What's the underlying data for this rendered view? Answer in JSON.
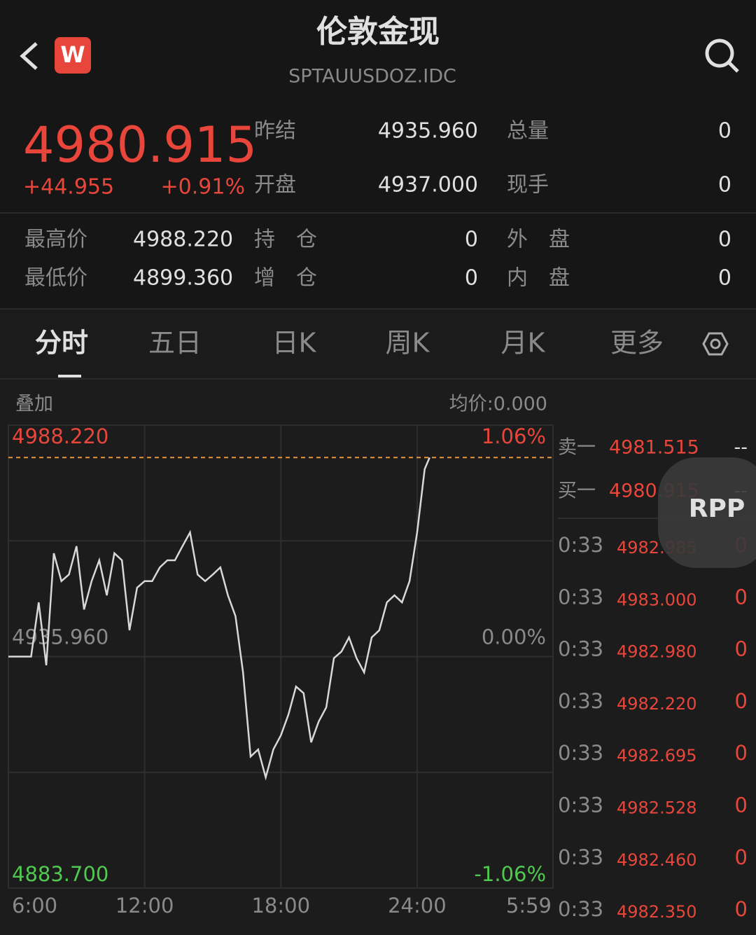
{
  "header": {
    "logo": "W",
    "title": "伦敦金现",
    "subtitle": "SPTAUUSDOZ.IDC"
  },
  "quote": {
    "price": "4980.915",
    "change": "+44.955",
    "change_pct": "+0.91%",
    "side": [
      {
        "label": "昨结",
        "value": "4935.960"
      },
      {
        "label": "总量",
        "value": "0"
      },
      {
        "label": "开盘",
        "value": "4937.000"
      },
      {
        "label": "现手",
        "value": "0"
      }
    ]
  },
  "stats": [
    {
      "label": "最高价",
      "value": "4988.220"
    },
    {
      "label": "持　仓",
      "value": "0"
    },
    {
      "label": "外　盘",
      "value": "0"
    },
    {
      "label": "最低价",
      "value": "4899.360"
    },
    {
      "label": "增　仓",
      "value": "0"
    },
    {
      "label": "内　盘",
      "value": "0"
    }
  ],
  "tabs": [
    "分时",
    "五日",
    "日K",
    "周K",
    "月K",
    "更多"
  ],
  "chart_data": {
    "type": "line",
    "overlay_label": "叠加",
    "avg_label": "均价:0.000",
    "color": "#d8d8d8",
    "x": [
      "6:00",
      "6:20",
      "6:40",
      "7:00",
      "7:20",
      "7:40",
      "8:00",
      "8:20",
      "8:40",
      "9:00",
      "9:20",
      "9:40",
      "10:00",
      "10:20",
      "10:40",
      "11:00",
      "11:20",
      "11:40",
      "12:00",
      "12:20",
      "12:40",
      "13:00",
      "13:20",
      "13:40",
      "14:00",
      "14:20",
      "14:40",
      "15:00",
      "15:20",
      "15:40",
      "16:00",
      "16:20",
      "16:40",
      "17:00",
      "17:20",
      "17:40",
      "18:00",
      "18:20",
      "18:40",
      "19:00",
      "19:20",
      "19:40",
      "20:00",
      "20:20",
      "20:40",
      "21:00",
      "21:20",
      "21:40",
      "22:00",
      "22:20",
      "22:40",
      "23:00",
      "23:20",
      "23:40",
      "0:00",
      "0:20",
      "0:33"
    ],
    "values": [
      4935.96,
      4935.96,
      4935.96,
      4935.96,
      4948.2,
      4934.0,
      4959.3,
      4953.0,
      4954.5,
      4960.9,
      4946.6,
      4953.0,
      4957.7,
      4949.8,
      4959.3,
      4957.7,
      4941.9,
      4951.5,
      4953.0,
      4953.0,
      4956.1,
      4957.7,
      4957.7,
      4960.9,
      4964.0,
      4954.5,
      4953.0,
      4954.5,
      4956.1,
      4949.8,
      4945.1,
      4932.4,
      4913.4,
      4915.0,
      4908.7,
      4915.0,
      4918.2,
      4922.9,
      4929.2,
      4927.7,
      4916.6,
      4921.3,
      4924.5,
      4935.6,
      4937.1,
      4940.3,
      4935.6,
      4932.4,
      4940.3,
      4941.9,
      4948.2,
      4949.8,
      4948.2,
      4953.0,
      4964.0,
      4978.3,
      4980.915
    ],
    "ylim": [
      4883.7,
      4988.22
    ],
    "yticks": [
      {
        "value": 4883.7,
        "label": "4883.700"
      },
      {
        "value": 4935.96,
        "label": "4935.960"
      },
      {
        "value": 4988.22,
        "label": "4988.220"
      }
    ],
    "pct_labels": [
      "-1.06%",
      "0.00%",
      "1.06%"
    ],
    "xticks": [
      "6:00",
      "12:00",
      "18:00",
      "24:00",
      "5:59"
    ]
  },
  "orderbook": [
    {
      "label": "卖一",
      "price": "4981.515",
      "vol": "--"
    },
    {
      "label": "买一",
      "price": "4980.915",
      "vol": "--"
    }
  ],
  "trades": [
    {
      "time": "0:33",
      "price": "4982.985",
      "vol": "0"
    },
    {
      "time": "0:33",
      "price": "4983.000",
      "vol": "0"
    },
    {
      "time": "0:33",
      "price": "4982.980",
      "vol": "0"
    },
    {
      "time": "0:33",
      "price": "4982.220",
      "vol": "0"
    },
    {
      "time": "0:33",
      "price": "4982.695",
      "vol": "0"
    },
    {
      "time": "0:33",
      "price": "4982.528",
      "vol": "0"
    },
    {
      "time": "0:33",
      "price": "4982.460",
      "vol": "0"
    },
    {
      "time": "0:33",
      "price": "4982.350",
      "vol": "0"
    }
  ],
  "badge": "RPP"
}
